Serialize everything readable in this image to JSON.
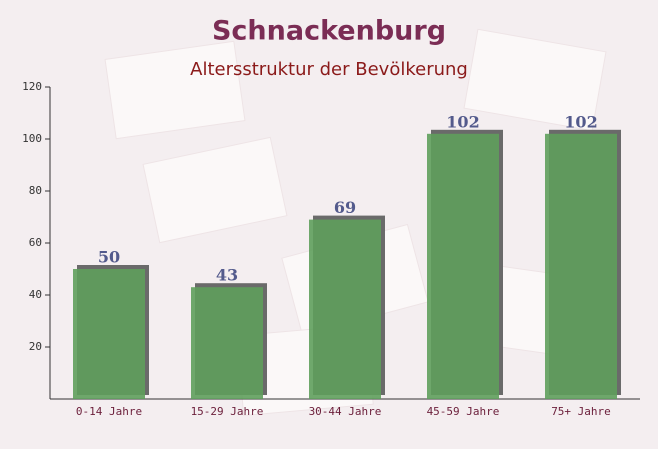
{
  "chart_data": {
    "type": "bar",
    "title": "Schnackenburg",
    "subtitle": "Altersstruktur der Bevölkerung",
    "categories": [
      "0-14 Jahre",
      "15-29 Jahre",
      "30-44 Jahre",
      "45-59 Jahre",
      "75+ Jahre"
    ],
    "values": [
      50,
      43,
      69,
      102,
      102
    ],
    "color": "#5f9e5c",
    "ylim": [
      0,
      120
    ],
    "yticks": [
      20,
      40,
      60,
      80,
      100,
      120
    ]
  }
}
